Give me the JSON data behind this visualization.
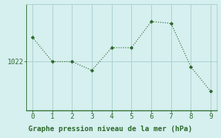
{
  "x": [
    0,
    1,
    2,
    3,
    4,
    5,
    6,
    7,
    8,
    9
  ],
  "y": [
    1023.4,
    1022.0,
    1022.0,
    1021.5,
    1022.8,
    1022.8,
    1024.3,
    1024.2,
    1021.7,
    1020.3
  ],
  "line_color": "#2d6a2d",
  "marker": "D",
  "marker_size": 2.5,
  "background_color": "#d6efef",
  "plot_bg_color": "#d6efef",
  "xlabel": "Graphe pression niveau de la mer (hPa)",
  "ytick_labels": [
    "1022"
  ],
  "ytick_values": [
    1022.0
  ],
  "xlim": [
    -0.3,
    9.3
  ],
  "ylim": [
    1019.2,
    1025.3
  ],
  "grid_color": "#aacece",
  "xlabel_fontsize": 7.5,
  "xlabel_color": "#2d6a2d",
  "tick_color": "#2d6a2d",
  "tick_fontsize": 7,
  "bottom_bar_color": "#2d6a2d",
  "bottom_bar_height": 0.13
}
